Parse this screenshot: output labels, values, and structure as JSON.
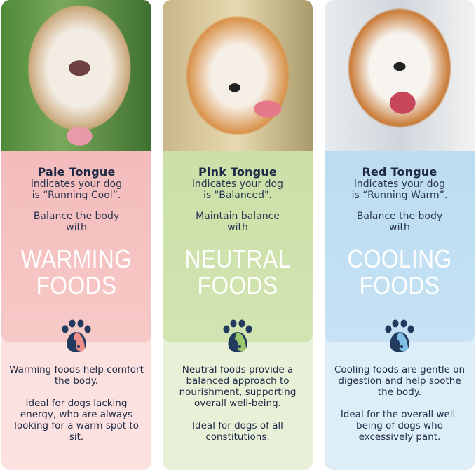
{
  "columns": [
    {
      "title": "Pale Tongue",
      "subtitle_1": "indicates your dog",
      "subtitle_2": "is “Running Cool”.",
      "balance_1": "Balance the body",
      "balance_2": "with",
      "food_1": "WARMING",
      "food_2": "FOODS",
      "body_1": "Warming foods help comfort the body.",
      "body_2": "Ideal for dogs lacking energy, who are always looking for a warm spot to sit.",
      "icon": "yin-yang-paw-icon",
      "colors": {
        "upper": "#f4bcbc",
        "lower": "#fbe1e0",
        "accent": "#ef8f8a"
      }
    },
    {
      "title": "Pink Tongue",
      "subtitle_1": "indicates your dog",
      "subtitle_2": "is \"Balanced\".",
      "balance_1": "Maintain balance",
      "balance_2": "with",
      "food_1": "NEUTRAL",
      "food_2": "FOODS",
      "body_1": "Neutral foods provide a balanced approach to nourishment, supporting overall well-being.",
      "body_2": "Ideal for dogs of all constitutions.",
      "icon": "yin-yang-paw-icon",
      "colors": {
        "upper": "#cbe0a8",
        "lower": "#e8f1d8",
        "accent": "#9cc76a"
      }
    },
    {
      "title": "Red Tongue",
      "subtitle_1": "indicates your dog",
      "subtitle_2": "is “Running Warm”.",
      "balance_1": "Balance the body",
      "balance_2": "with",
      "food_1": "COOLING",
      "food_2": "FOODS",
      "body_1": "Cooling foods are gentle on digestion and help soothe the body.",
      "body_2": "Ideal for the overall well-being of dogs who excessively pant.",
      "icon": "yin-yang-paw-icon",
      "colors": {
        "upper": "#bcdcf1",
        "lower": "#deeef9",
        "accent": "#7fbfe6"
      }
    }
  ]
}
